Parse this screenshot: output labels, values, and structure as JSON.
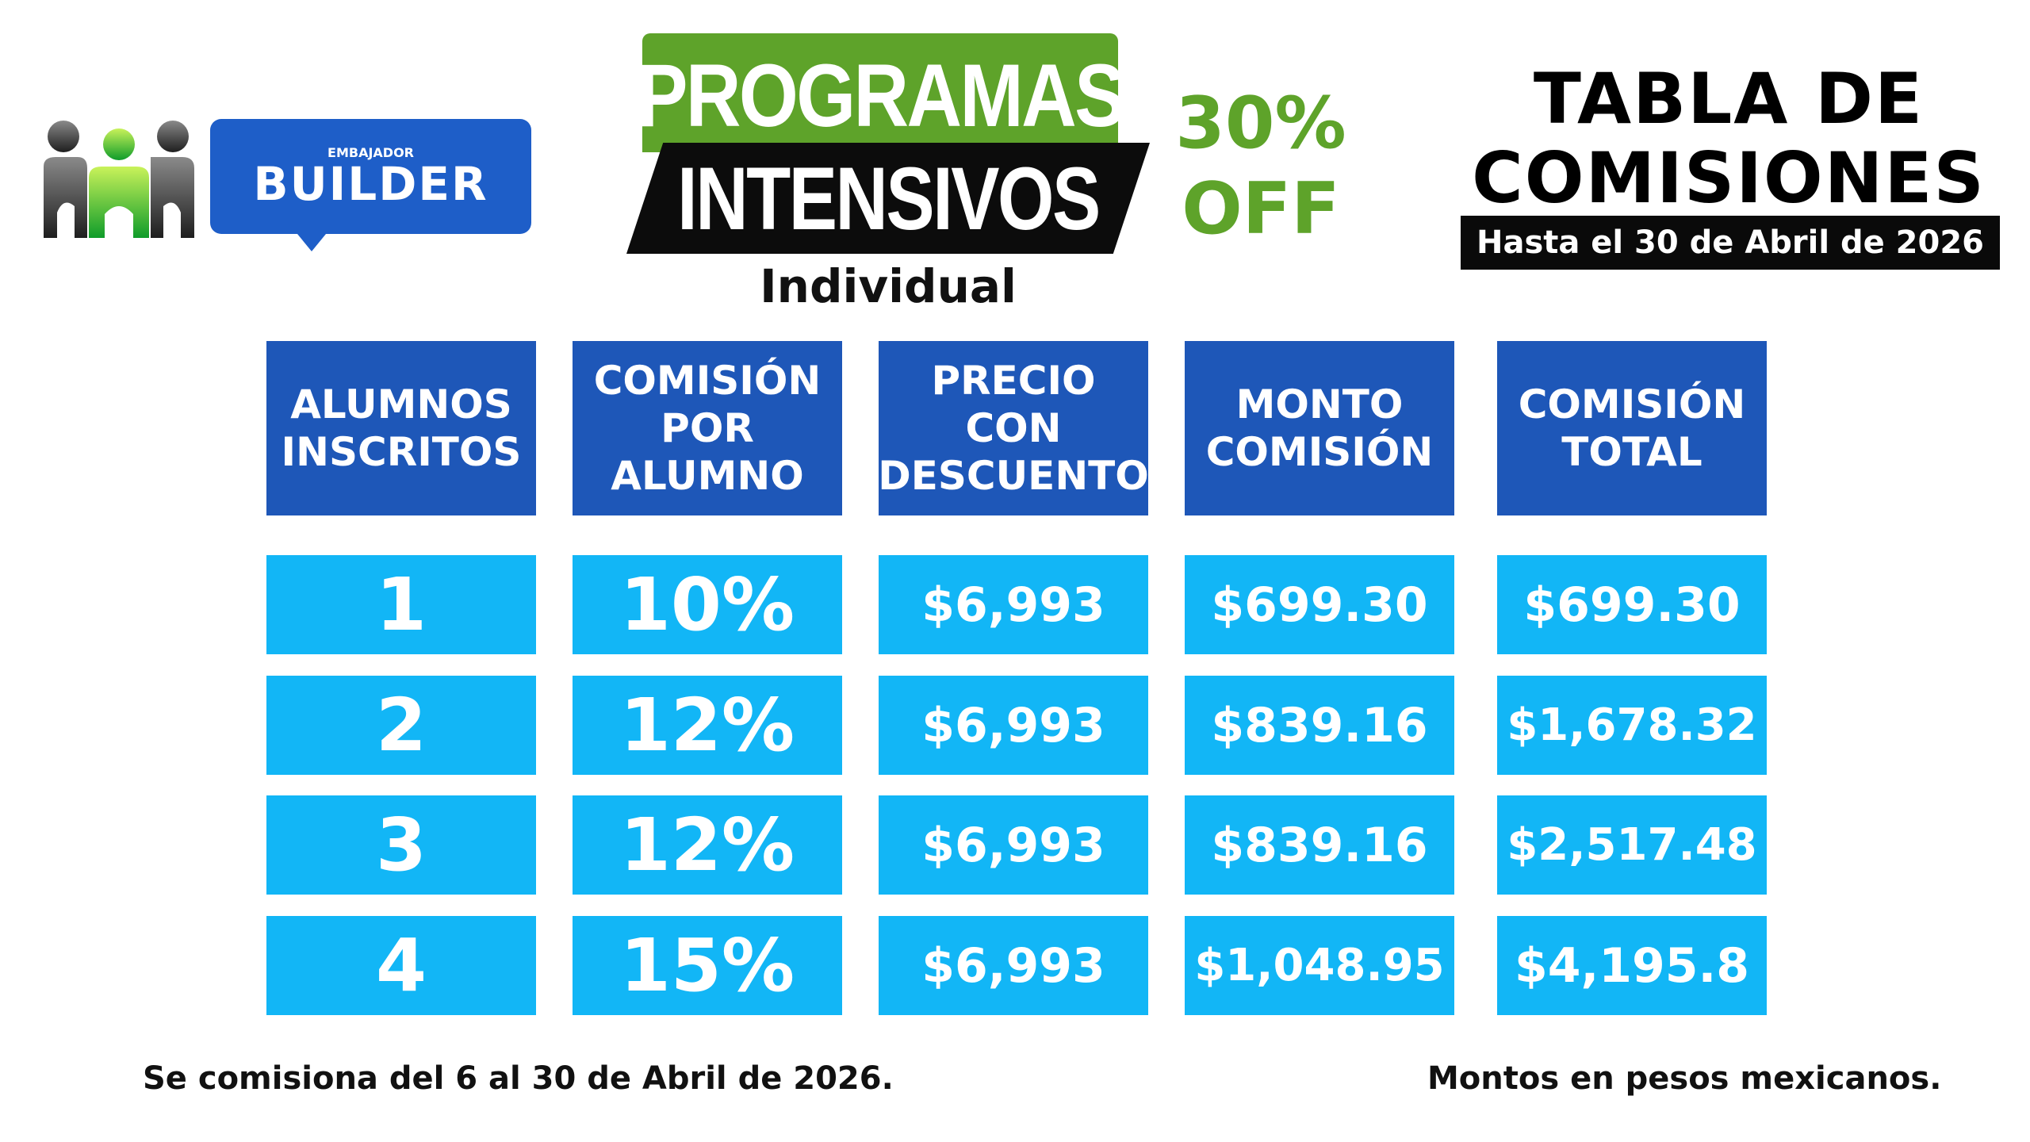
{
  "logo": {
    "badge_line1": "EMBAJADOR",
    "badge_line2": "BUILDER",
    "colors": {
      "dark": "#3a3a3a",
      "green": "#3cc83c",
      "blue": "#1e5ec8"
    }
  },
  "program": {
    "line1": "PROGRAMAS",
    "line2": "INTENSIVOS",
    "subtitle": "Individual",
    "discount_line1": "30%",
    "discount_line2": "OFF",
    "colors": {
      "green": "#5ea32a",
      "black": "#0c0c0c"
    }
  },
  "title": {
    "line1": "TABLA DE",
    "line2": "COMISIONES",
    "date_bar": "Hasta el 30 de Abril de 2026"
  },
  "table": {
    "headers": [
      "ALUMNOS\nINSCRITOS",
      "COMISIÓN\nPOR\nALUMNO",
      "PRECIO CON\nDESCUENTO",
      "MONTO\nCOMISIÓN",
      "COMISIÓN\nTOTAL"
    ],
    "rows": [
      {
        "students": "1",
        "rate": "10%",
        "price": "$6,993",
        "amount": "$699.30",
        "total": "$699.30"
      },
      {
        "students": "2",
        "rate": "12%",
        "price": "$6,993",
        "amount": "$839.16",
        "total": "$1,678.32"
      },
      {
        "students": "3",
        "rate": "12%",
        "price": "$6,993",
        "amount": "$839.16",
        "total": "$2,517.48"
      },
      {
        "students": "4",
        "rate": "15%",
        "price": "$6,993",
        "amount": "$1,048.95",
        "total": "$4,195.8"
      }
    ],
    "colors": {
      "header": "#1e57b8",
      "cell": "#12b6f6"
    }
  },
  "footer": {
    "left": "Se comisiona del 6 al 30 de Abril de 2026.",
    "right": "Montos en pesos mexicanos."
  }
}
